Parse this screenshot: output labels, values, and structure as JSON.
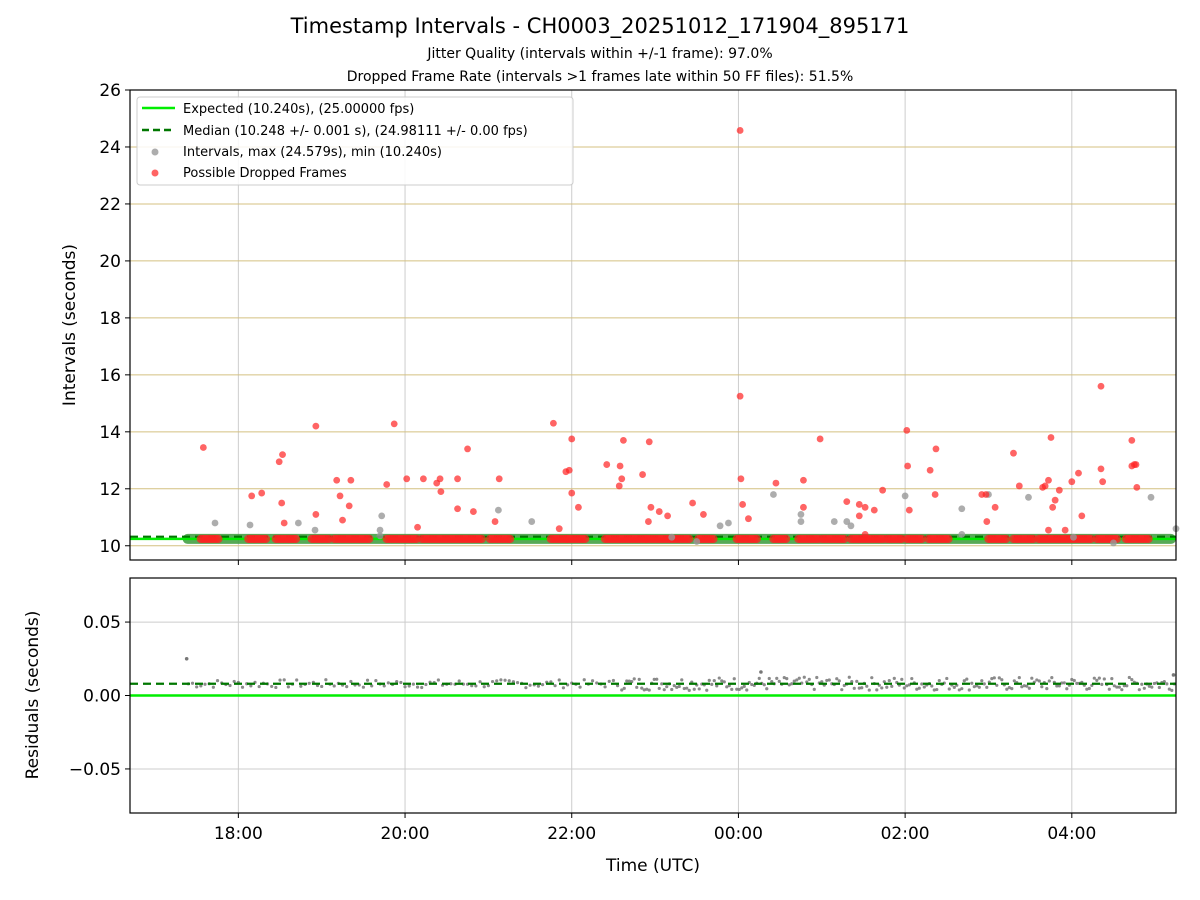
{
  "title": "Timestamp Intervals - CH0003_20251012_171904_895171",
  "subtitle_jitter": "Jitter Quality (intervals within +/-1 frame): 97.0%",
  "subtitle_dropped": "Dropped Frame Rate (intervals >1 frames late within 50 FF files): 51.5%",
  "colors": {
    "expected": "#00ee00",
    "median": "#007700",
    "intervals": "#999999",
    "dropped": "#ff2222",
    "grid": "#cccccc",
    "hgrid_top": "#d4c080",
    "resid_points": "#777777"
  },
  "chart_data": [
    {
      "type": "scatter",
      "panel": "intervals",
      "ylabel": "Intervals (seconds)",
      "ylim": [
        9.5,
        26
      ],
      "yticks": [
        10,
        12,
        14,
        16,
        18,
        20,
        22,
        24,
        26
      ],
      "xlim_hours": [
        16.7,
        29.25
      ],
      "expected_value": 10.24,
      "median_value": 10.248,
      "legend": {
        "position": "top-left",
        "entries": [
          {
            "label": "Expected (10.240s), (25.00000 fps)",
            "kind": "line"
          },
          {
            "label": "Median (10.248 +/- 0.001 s), (24.98111 +/- 0.00 fps)",
            "kind": "dashed"
          },
          {
            "label": "Intervals, max (24.579s), min (10.240s)",
            "kind": "gray-dot"
          },
          {
            "label": "Possible Dropped Frames",
            "kind": "red-dot"
          }
        ]
      },
      "series": [
        {
          "name": "Intervals",
          "points": [
            [
              17.72,
              10.8
            ],
            [
              18.14,
              10.73
            ],
            [
              18.72,
              10.8
            ],
            [
              18.92,
              10.55
            ],
            [
              19.7,
              10.55
            ],
            [
              19.72,
              11.05
            ],
            [
              19.7,
              10.35
            ],
            [
              21.12,
              11.25
            ],
            [
              21.52,
              10.85
            ],
            [
              23.2,
              10.3
            ],
            [
              23.5,
              10.15
            ],
            [
              23.78,
              10.7
            ],
            [
              23.88,
              10.8
            ],
            [
              24.42,
              11.8
            ],
            [
              24.75,
              10.85
            ],
            [
              24.75,
              11.1
            ],
            [
              25.15,
              10.85
            ],
            [
              25.3,
              10.85
            ],
            [
              25.35,
              10.7
            ],
            [
              26.0,
              11.75
            ],
            [
              26.68,
              11.3
            ],
            [
              26.68,
              10.4
            ],
            [
              27.0,
              11.8
            ],
            [
              27.48,
              11.7
            ],
            [
              28.02,
              10.3
            ],
            [
              28.5,
              10.1
            ],
            [
              28.95,
              11.7
            ],
            [
              29.25,
              10.6
            ]
          ]
        },
        {
          "name": "Possible Dropped Frames",
          "points": [
            [
              17.58,
              13.45
            ],
            [
              18.16,
              11.75
            ],
            [
              18.28,
              11.85
            ],
            [
              18.49,
              12.95
            ],
            [
              18.53,
              13.2
            ],
            [
              18.52,
              11.5
            ],
            [
              18.55,
              10.8
            ],
            [
              18.93,
              14.2
            ],
            [
              18.93,
              11.1
            ],
            [
              19.18,
              12.3
            ],
            [
              19.22,
              11.75
            ],
            [
              19.25,
              10.9
            ],
            [
              19.33,
              11.4
            ],
            [
              19.35,
              12.3
            ],
            [
              19.78,
              12.15
            ],
            [
              19.87,
              14.28
            ],
            [
              20.02,
              12.35
            ],
            [
              20.15,
              10.65
            ],
            [
              20.22,
              12.35
            ],
            [
              20.38,
              12.2
            ],
            [
              20.42,
              12.35
            ],
            [
              20.43,
              11.9
            ],
            [
              20.63,
              12.35
            ],
            [
              20.63,
              11.3
            ],
            [
              20.75,
              13.4
            ],
            [
              20.82,
              11.2
            ],
            [
              21.08,
              10.85
            ],
            [
              21.13,
              12.35
            ],
            [
              21.78,
              14.3
            ],
            [
              21.85,
              10.6
            ],
            [
              21.93,
              12.6
            ],
            [
              21.97,
              12.65
            ],
            [
              22.0,
              11.85
            ],
            [
              22.0,
              13.75
            ],
            [
              22.08,
              11.35
            ],
            [
              22.42,
              12.85
            ],
            [
              22.57,
              12.1
            ],
            [
              22.58,
              12.8
            ],
            [
              22.6,
              12.35
            ],
            [
              22.62,
              13.7
            ],
            [
              22.85,
              12.5
            ],
            [
              22.92,
              10.85
            ],
            [
              22.93,
              13.65
            ],
            [
              22.95,
              11.35
            ],
            [
              23.05,
              11.2
            ],
            [
              23.15,
              11.05
            ],
            [
              23.45,
              11.5
            ],
            [
              23.58,
              11.1
            ],
            [
              24.02,
              24.58
            ],
            [
              24.02,
              15.25
            ],
            [
              24.03,
              12.35
            ],
            [
              24.05,
              11.45
            ],
            [
              24.12,
              10.95
            ],
            [
              24.45,
              12.2
            ],
            [
              24.78,
              11.35
            ],
            [
              24.78,
              12.3
            ],
            [
              24.98,
              13.75
            ],
            [
              25.3,
              11.55
            ],
            [
              25.45,
              11.45
            ],
            [
              25.45,
              11.05
            ],
            [
              25.52,
              10.4
            ],
            [
              25.52,
              11.35
            ],
            [
              25.63,
              11.25
            ],
            [
              25.73,
              11.95
            ],
            [
              26.02,
              14.05
            ],
            [
              26.03,
              12.8
            ],
            [
              26.05,
              11.25
            ],
            [
              26.3,
              12.65
            ],
            [
              26.36,
              11.8
            ],
            [
              26.37,
              13.4
            ],
            [
              26.92,
              11.8
            ],
            [
              26.97,
              11.8
            ],
            [
              26.98,
              10.85
            ],
            [
              27.08,
              11.35
            ],
            [
              27.3,
              13.25
            ],
            [
              27.37,
              12.1
            ],
            [
              27.65,
              12.05
            ],
            [
              27.68,
              12.1
            ],
            [
              27.72,
              12.3
            ],
            [
              27.72,
              10.55
            ],
            [
              27.75,
              13.8
            ],
            [
              27.77,
              11.35
            ],
            [
              27.8,
              11.6
            ],
            [
              27.85,
              11.95
            ],
            [
              27.92,
              10.55
            ],
            [
              28.0,
              12.25
            ],
            [
              28.08,
              12.55
            ],
            [
              28.12,
              11.05
            ],
            [
              28.35,
              12.7
            ],
            [
              28.35,
              15.6
            ],
            [
              28.37,
              12.25
            ],
            [
              28.72,
              13.7
            ],
            [
              28.72,
              12.8
            ],
            [
              28.75,
              12.85
            ],
            [
              28.77,
              12.85
            ],
            [
              28.78,
              12.05
            ]
          ]
        }
      ]
    },
    {
      "type": "scatter",
      "panel": "residuals",
      "ylabel": "Residuals (seconds)",
      "xlabel": "Time (UTC)",
      "ylim": [
        -0.08,
        0.08
      ],
      "yticks": [
        -0.05,
        0.0,
        0.05
      ],
      "ytick_labels": [
        "−0.05",
        "0.00",
        "0.05"
      ],
      "xticks_hours": [
        18,
        20,
        22,
        24,
        26,
        28
      ],
      "xtick_labels": [
        "18:00",
        "20:00",
        "22:00",
        "00:00",
        "02:00",
        "04:00"
      ],
      "expected_residual": 0.0,
      "median_residual": 0.008,
      "outliers": [
        [
          17.38,
          0.025
        ],
        [
          24.27,
          0.016
        ],
        [
          29.22,
          0.014
        ]
      ]
    }
  ]
}
